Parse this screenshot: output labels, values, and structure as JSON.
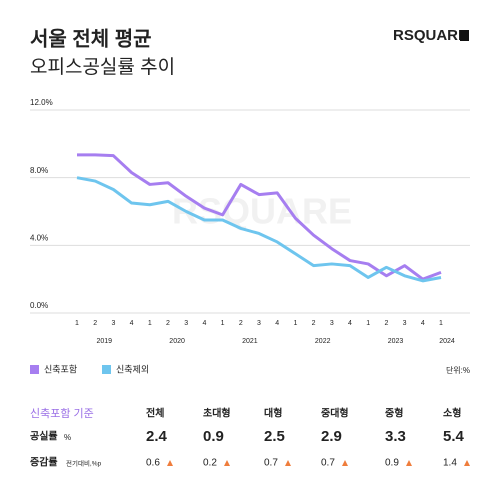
{
  "header": {
    "title": "서울 전체 평균",
    "subtitle": "오피스공실률 추이",
    "brand": "RSQUARE"
  },
  "chart_data": {
    "type": "line",
    "categories": [
      "1",
      "2",
      "3",
      "4",
      "1",
      "2",
      "3",
      "4",
      "1",
      "2",
      "3",
      "4",
      "1",
      "2",
      "3",
      "4",
      "1",
      "2",
      "3",
      "4",
      "1"
    ],
    "years": [
      "2019",
      "2020",
      "2021",
      "2022",
      "2023",
      "2024"
    ],
    "series": [
      {
        "name": "신축포함",
        "color": "#a67ef0",
        "values": [
          9.35,
          9.35,
          9.3,
          8.3,
          7.6,
          7.7,
          6.9,
          6.2,
          5.8,
          7.6,
          7.0,
          7.1,
          5.6,
          4.6,
          3.8,
          3.1,
          2.9,
          2.2,
          2.8,
          2.0,
          2.4
        ]
      },
      {
        "name": "신축제외",
        "color": "#6ec5ee",
        "values": [
          8.0,
          7.8,
          7.3,
          6.5,
          6.4,
          6.6,
          6.0,
          5.5,
          5.5,
          5.0,
          4.7,
          4.2,
          3.5,
          2.8,
          2.9,
          2.8,
          2.1,
          2.7,
          2.2,
          1.9,
          2.1
        ]
      }
    ],
    "ylim": [
      0,
      12
    ],
    "yticks": [
      {
        "value": 0,
        "label": "0.0%"
      },
      {
        "value": 4,
        "label": "4.0%"
      },
      {
        "value": 8,
        "label": "8.0%"
      },
      {
        "value": 12,
        "label": "12.0%"
      }
    ],
    "grid": true,
    "unit_note": "단위:%"
  },
  "table": {
    "caption": "신축포함 기준",
    "columns": [
      "전체",
      "초대형",
      "대형",
      "중대형",
      "중형",
      "소형"
    ],
    "rows": [
      {
        "label": "공실률",
        "unit": "%",
        "values": [
          2.4,
          0.9,
          2.5,
          2.9,
          3.3,
          5.4
        ]
      },
      {
        "label": "증감률",
        "unit": "전기대비,%p",
        "values": [
          0.6,
          0.2,
          0.7,
          0.7,
          0.9,
          1.4
        ]
      }
    ]
  }
}
